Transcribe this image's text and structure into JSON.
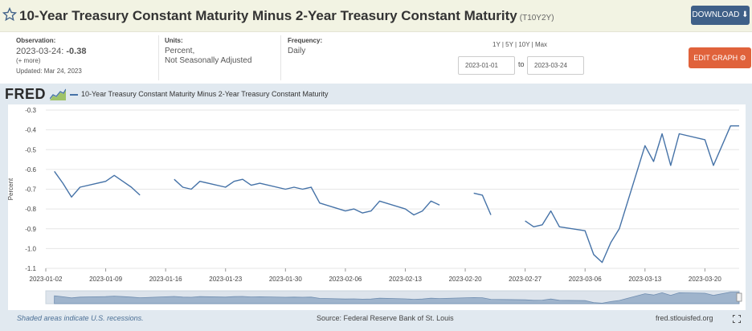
{
  "header": {
    "title": "10-Year Treasury Constant Maturity Minus 2-Year Treasury Constant Maturity",
    "series_id": "(T10Y2Y)",
    "download_label": "DOWNLOAD",
    "star_icon": "star-outline-icon"
  },
  "meta": {
    "observation_label": "Observation:",
    "observation_date": "2023-03-24:",
    "observation_value": "-0.38",
    "more_link": "(+ more)",
    "updated": "Updated: Mar 24, 2023",
    "units_label": "Units:",
    "units_line1": "Percent,",
    "units_line2": "Not Seasonally Adjusted",
    "frequency_label": "Frequency:",
    "frequency_value": "Daily",
    "ranges": "1Y | 5Y | 10Y | Max",
    "date_from": "2023-01-01",
    "date_to_label": "to",
    "date_to": "2023-03-24",
    "edit_label": "EDIT GRAPH"
  },
  "chart": {
    "logo_text": "FRED",
    "footer_recession": "Shaded areas indicate U.S. recessions.",
    "footer_source": "Source: Federal Reserve Bank of St. Louis",
    "footer_site": "fred.stlouisfed.org"
  },
  "colors": {
    "line": "#4572a7",
    "download": "#3f6088",
    "edit": "#e0623b",
    "background": "#e1e9f0"
  },
  "chart_data": {
    "type": "line",
    "ylabel": "Percent",
    "ylim": [
      -1.1,
      -0.3
    ],
    "yticks": [
      -0.3,
      -0.4,
      -0.5,
      -0.6,
      -0.7,
      -0.8,
      -0.9,
      -1.0,
      -1.1
    ],
    "ytick_labels": [
      "-0.3",
      "-0.4",
      "-0.5",
      "-0.6",
      "-0.7",
      "-0.8",
      "-0.9",
      "-1.0",
      "-1.1"
    ],
    "xlim": [
      "2023-01-02",
      "2023-03-24"
    ],
    "xticks": [
      "2023-01-02",
      "2023-01-09",
      "2023-01-16",
      "2023-01-23",
      "2023-01-30",
      "2023-02-06",
      "2023-02-13",
      "2023-02-20",
      "2023-02-27",
      "2023-03-06",
      "2023-03-13",
      "2023-03-20"
    ],
    "grid": true,
    "series": [
      {
        "name": "10-Year Treasury Constant Maturity Minus 2-Year Treasury Constant Maturity",
        "points": [
          [
            "2023-01-03",
            -0.61
          ],
          [
            "2023-01-04",
            -0.67
          ],
          [
            "2023-01-05",
            -0.74
          ],
          [
            "2023-01-06",
            -0.69
          ],
          [
            "2023-01-09",
            -0.66
          ],
          [
            "2023-01-10",
            -0.63
          ],
          [
            "2023-01-11",
            -0.66
          ],
          [
            "2023-01-12",
            -0.69
          ],
          [
            "2023-01-13",
            -0.73
          ],
          [
            "2023-01-17",
            -0.65
          ],
          [
            "2023-01-18",
            -0.69
          ],
          [
            "2023-01-19",
            -0.7
          ],
          [
            "2023-01-20",
            -0.66
          ],
          [
            "2023-01-23",
            -0.69
          ],
          [
            "2023-01-24",
            -0.66
          ],
          [
            "2023-01-25",
            -0.65
          ],
          [
            "2023-01-26",
            -0.68
          ],
          [
            "2023-01-27",
            -0.67
          ],
          [
            "2023-01-30",
            -0.7
          ],
          [
            "2023-01-31",
            -0.69
          ],
          [
            "2023-02-01",
            -0.7
          ],
          [
            "2023-02-02",
            -0.69
          ],
          [
            "2023-02-03",
            -0.77
          ],
          [
            "2023-02-06",
            -0.81
          ],
          [
            "2023-02-07",
            -0.8
          ],
          [
            "2023-02-08",
            -0.82
          ],
          [
            "2023-02-09",
            -0.81
          ],
          [
            "2023-02-10",
            -0.76
          ],
          [
            "2023-02-13",
            -0.8
          ],
          [
            "2023-02-14",
            -0.83
          ],
          [
            "2023-02-15",
            -0.81
          ],
          [
            "2023-02-16",
            -0.76
          ],
          [
            "2023-02-17",
            -0.78
          ],
          [
            "2023-02-21",
            -0.72
          ],
          [
            "2023-02-22",
            -0.73
          ],
          [
            "2023-02-23",
            -0.83
          ],
          [
            "2023-02-27",
            -0.86
          ],
          [
            "2023-02-28",
            -0.89
          ],
          [
            "2023-03-01",
            -0.88
          ],
          [
            "2023-03-02",
            -0.81
          ],
          [
            "2023-03-03",
            -0.89
          ],
          [
            "2023-03-06",
            -0.91
          ],
          [
            "2023-03-07",
            -1.03
          ],
          [
            "2023-03-08",
            -1.07
          ],
          [
            "2023-03-09",
            -0.97
          ],
          [
            "2023-03-10",
            -0.9
          ],
          [
            "2023-03-13",
            -0.48
          ],
          [
            "2023-03-14",
            -0.56
          ],
          [
            "2023-03-15",
            -0.42
          ],
          [
            "2023-03-16",
            -0.58
          ],
          [
            "2023-03-17",
            -0.42
          ],
          [
            "2023-03-20",
            -0.45
          ],
          [
            "2023-03-21",
            -0.58
          ],
          [
            "2023-03-23",
            -0.38
          ],
          [
            "2023-03-24",
            -0.38
          ]
        ]
      }
    ]
  }
}
